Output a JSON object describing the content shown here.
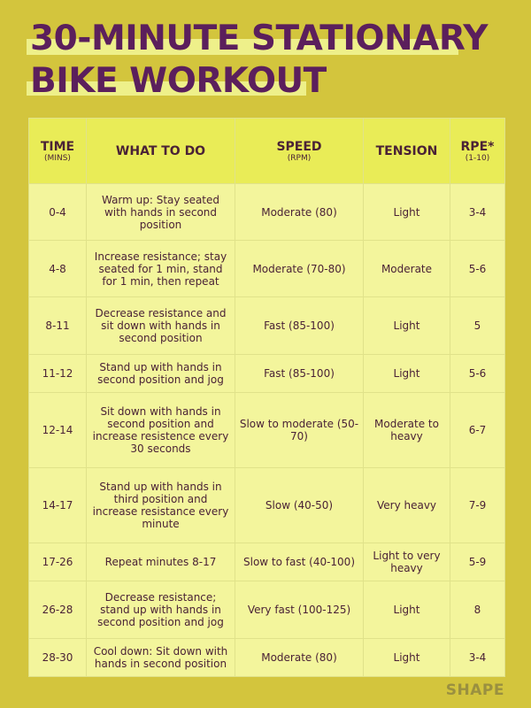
{
  "title": {
    "line1": "30-MINUTE STATIONARY",
    "line2": "BIKE WORKOUT"
  },
  "colors": {
    "background": "#d3c53d",
    "title": "#5b1f5c",
    "header_bg": "#e9ec57",
    "row_bg": "#f3f59c",
    "text": "#4a2236"
  },
  "table": {
    "headers": [
      {
        "main": "TIME",
        "sub": "(MINS)"
      },
      {
        "main": "WHAT TO DO",
        "sub": ""
      },
      {
        "main": "SPEED",
        "sub": "(RPM)"
      },
      {
        "main": "TENSION",
        "sub": ""
      },
      {
        "main": "RPE*",
        "sub": "(1-10)"
      }
    ],
    "rows": [
      [
        "0-4",
        "Warm up: Stay seated with hands in second position",
        "Moderate (80)",
        "Light",
        "3-4"
      ],
      [
        "4-8",
        "Increase resistance; stay seated for 1 min, stand for 1 min, then repeat",
        "Moderate (70-80)",
        "Moderate",
        "5-6"
      ],
      [
        "8-11",
        "Decrease resistance and sit down with hands in second position",
        "Fast (85-100)",
        "Light",
        "5"
      ],
      [
        "11-12",
        "Stand up with hands in second position and jog",
        "Fast (85-100)",
        "Light",
        "5-6"
      ],
      [
        "12-14",
        "Sit down with hands in second position and increase resistence every 30 seconds",
        "Slow to moderate (50-70)",
        "Moderate to heavy",
        "6-7"
      ],
      [
        "14-17",
        "Stand up with hands in third position and increase resistance every minute",
        "Slow (40-50)",
        "Very heavy",
        "7-9"
      ],
      [
        "17-26",
        "Repeat minutes 8-17",
        "Slow to fast (40-100)",
        "Light to very heavy",
        "5-9"
      ],
      [
        "26-28",
        "Decrease resistance; stand up with hands in second position and jog",
        "Very fast (100-125)",
        "Light",
        "8"
      ],
      [
        "28-30",
        "Cool down: Sit down with hands in second position",
        "Moderate (80)",
        "Light",
        "3-4"
      ]
    ]
  },
  "brand": "SHAPE"
}
